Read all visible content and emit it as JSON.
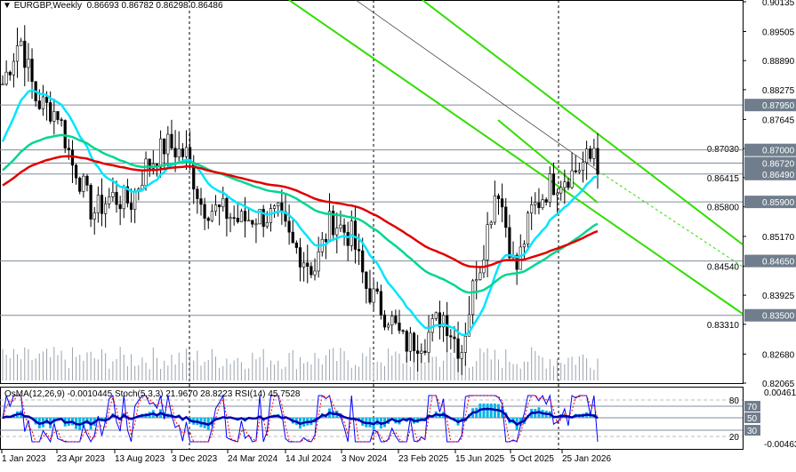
{
  "header": {
    "symbol_label": "EURGBP,Weekly",
    "ohlc": "0.86693 0.86782 0.86298 0.86486"
  },
  "indicator_header": {
    "text": "OsMA(12,26,9) -0.0010445  Stoch(5,3,3) 21.9670 28.8223  RSI(14) 45.7528"
  },
  "colors": {
    "background": "#ffffff",
    "bull": "#000000",
    "fast_ma": "#00e5ff",
    "mid_ma": "#00d68f",
    "slow_ma": "#e00000",
    "channel": "#33dd00",
    "level_line": "#7f8c9a",
    "label_bg": "#6f7d8c",
    "osma": "#00b4e6",
    "stoch": "#0000ff",
    "rsi": "#0000b0"
  },
  "chart_data": {
    "type": "candlestick",
    "title": "EURGBP,Weekly",
    "ylim": [
      0.82065,
      0.90135
    ],
    "y_ticks": [
      "0.90135",
      "0.89505",
      "0.88890",
      "0.88275",
      "0.87645",
      "0.87030",
      "0.86415",
      "0.85800",
      "0.85170",
      "0.84540",
      "0.83925",
      "0.83310",
      "0.82680",
      "0.82065"
    ],
    "x_ticks": [
      "1 Jan 2023",
      "23 Apr 2023",
      "13 Aug 2023",
      "3 Dec 2023",
      "24 Mar 2024",
      "14 Jul 2024",
      "3 Nov 2024",
      "23 Feb 2025",
      "15 Jun 2025",
      "5 Oct 2025",
      "25 Jan 2026"
    ],
    "monthly_closes": [
      [
        "2023-01",
        0.884
      ],
      [
        "2023-02",
        0.893
      ],
      [
        "2023-03",
        0.88
      ],
      [
        "2023-04",
        0.878
      ],
      [
        "2023-05",
        0.866
      ],
      [
        "2023-06",
        0.857
      ],
      [
        "2023-07",
        0.86
      ],
      [
        "2023-08",
        0.859
      ],
      [
        "2023-09",
        0.867
      ],
      [
        "2023-10",
        0.871
      ],
      [
        "2023-11",
        0.869
      ],
      [
        "2023-12",
        0.858
      ],
      [
        "2024-01",
        0.857
      ],
      [
        "2024-02",
        0.855
      ],
      [
        "2024-03",
        0.856
      ],
      [
        "2024-04",
        0.856
      ],
      [
        "2024-05",
        0.849
      ],
      [
        "2024-06",
        0.845
      ],
      [
        "2024-07",
        0.855
      ],
      [
        "2024-08",
        0.852
      ],
      [
        "2024-09",
        0.84
      ],
      [
        "2024-10",
        0.835
      ],
      [
        "2024-11",
        0.829
      ],
      [
        "2024-12",
        0.83
      ],
      [
        "2025-01",
        0.835
      ],
      [
        "2025-02",
        0.828
      ],
      [
        "2025-03",
        0.846
      ],
      [
        "2025-04",
        0.862
      ],
      [
        "2025-05",
        0.845
      ],
      [
        "2025-06",
        0.858
      ],
      [
        "2025-07",
        0.863
      ],
      [
        "2025-08",
        0.865
      ],
      [
        "2025-09",
        0.868
      ],
      [
        "2025-10",
        0.88
      ],
      [
        "2025-11",
        0.876
      ],
      [
        "2025-12",
        0.869
      ],
      [
        "2026-01",
        0.868
      ],
      [
        "2026-02",
        0.877
      ],
      [
        "2026-03",
        0.86486
      ]
    ],
    "levels": [
      {
        "label": "0.87950",
        "value": 0.8795
      },
      {
        "label": "0.87000",
        "value": 0.87
      },
      {
        "label": "0.86720",
        "value": 0.8672
      },
      {
        "label": "0.86490",
        "value": 0.8649
      },
      {
        "label": "0.85900",
        "value": 0.859
      },
      {
        "label": "0.84650",
        "value": 0.8465
      },
      {
        "label": "0.83500",
        "value": 0.835
      }
    ],
    "indicator": {
      "upper": "0.004613",
      "lower": "-0.004631",
      "levels": [
        "80",
        "70",
        "50",
        "30",
        "20"
      ]
    },
    "grid": false
  }
}
